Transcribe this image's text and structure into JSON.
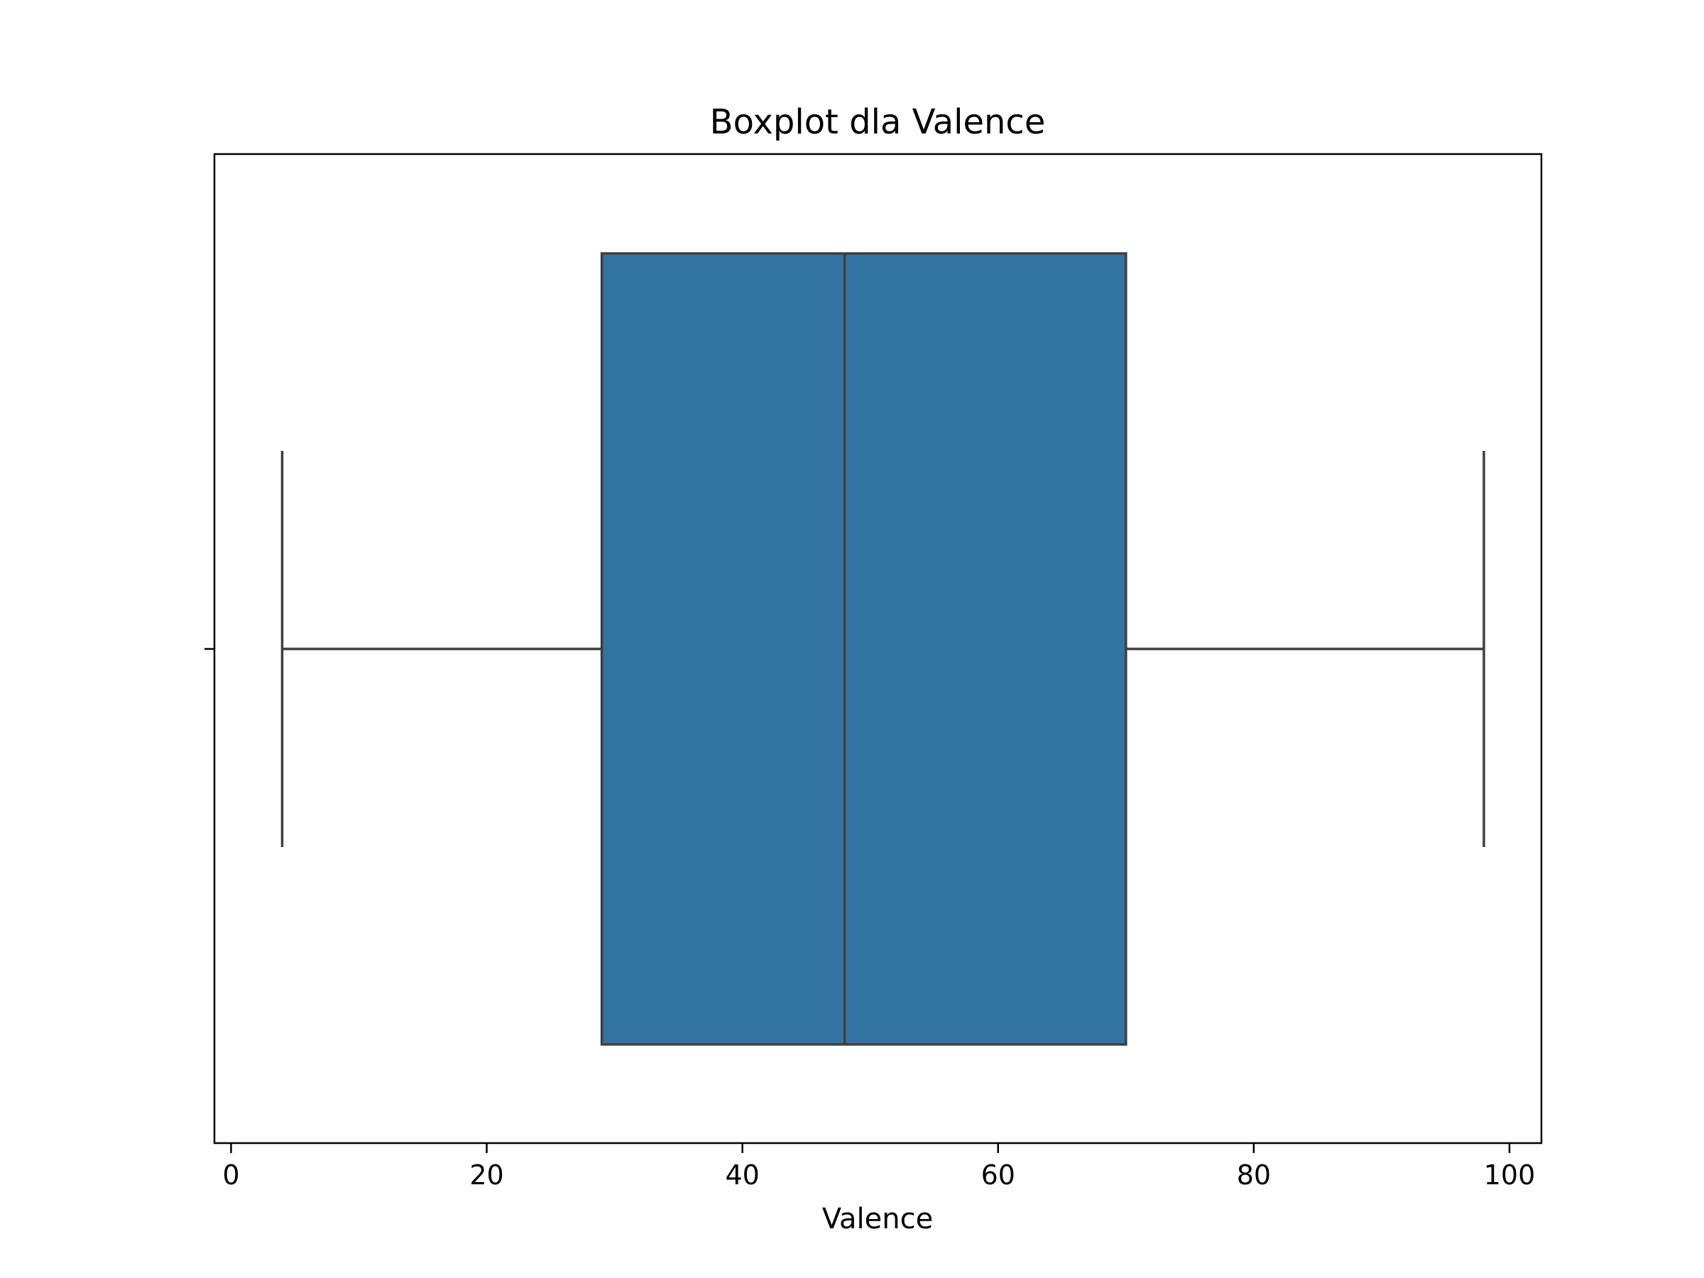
{
  "chart_data": {
    "type": "boxplot",
    "title": "Boxplot dla Valence",
    "xlabel": "Valence",
    "ylabel": "",
    "orientation": "horizontal",
    "xlim": [
      -1.3,
      102.5
    ],
    "xticks": [
      0,
      20,
      40,
      60,
      80,
      100
    ],
    "grid": false,
    "series": [
      {
        "min": 4,
        "q1": 29,
        "median": 48,
        "q3": 70,
        "max": 98,
        "color": "#3274a1"
      }
    ]
  },
  "colors": {
    "box_fill": "#3274a1",
    "line": "#3f3f3f",
    "axis": "#000000"
  }
}
